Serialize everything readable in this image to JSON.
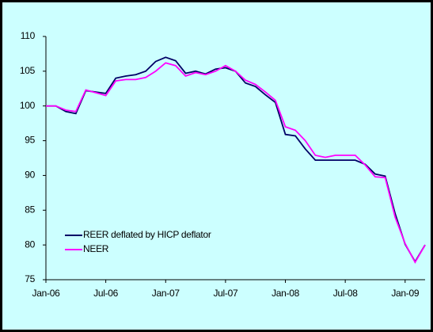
{
  "chart_data": {
    "type": "line",
    "categories": [
      "Jan-06",
      null,
      null,
      null,
      null,
      null,
      "Jul-06",
      null,
      null,
      null,
      null,
      null,
      "Jan-07",
      null,
      null,
      null,
      null,
      null,
      "Jul-07",
      null,
      null,
      null,
      null,
      null,
      "Jan-08",
      null,
      null,
      null,
      null,
      null,
      "Jul-08",
      null,
      null,
      null,
      null,
      null,
      "Jan-09",
      null,
      null
    ],
    "series": [
      {
        "name": "REER deflated by HICP deflator",
        "color": "#000066",
        "values": [
          100,
          100,
          99.2,
          98.9,
          102.2,
          102,
          101.8,
          104,
          104.3,
          104.5,
          105,
          106.4,
          107,
          106.5,
          104.7,
          105,
          104.6,
          105.3,
          105.5,
          105,
          103.3,
          102.8,
          101.6,
          100.5,
          95.9,
          95.7,
          93.8,
          92.2,
          92.2,
          92.2,
          92.2,
          92.2,
          91.6,
          90.2,
          89.9,
          84.5,
          80.1,
          77.6,
          80
        ]
      },
      {
        "name": "NEER",
        "color": "#ff00ff",
        "values": [
          100,
          100,
          99.4,
          99.2,
          102.3,
          101.9,
          101.5,
          103.6,
          103.8,
          103.8,
          104.1,
          105,
          106.2,
          105.8,
          104.3,
          104.8,
          104.5,
          105,
          105.8,
          105,
          103.7,
          103.1,
          102,
          100.8,
          97,
          96.5,
          95,
          92.9,
          92.6,
          92.9,
          92.9,
          92.9,
          91.5,
          89.8,
          89.7,
          84,
          80.2,
          77.5,
          80
        ]
      }
    ],
    "ylim": [
      75,
      110
    ],
    "yticks": [
      75,
      80,
      85,
      90,
      95,
      100,
      105,
      110
    ],
    "legend": "lower left"
  }
}
